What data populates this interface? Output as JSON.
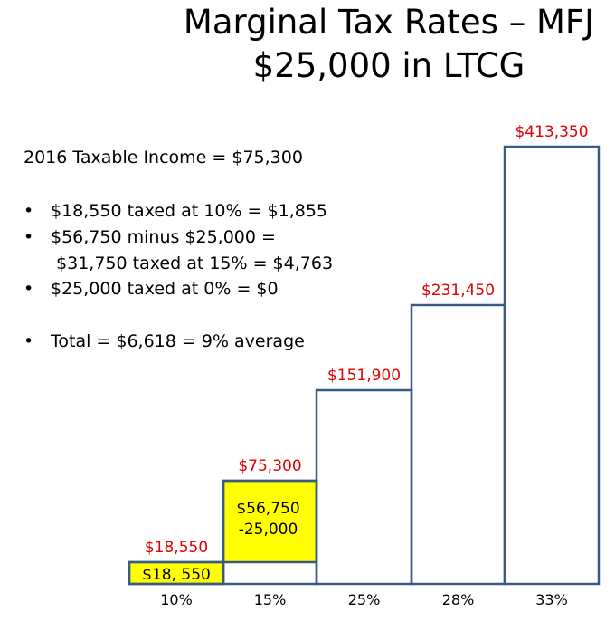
{
  "title": {
    "line1": "Marginal Tax Rates – MFJ",
    "line2": "$25,000 in LTCG"
  },
  "summary": {
    "heading": "2016 Taxable Income = $75,300",
    "bullets": [
      {
        "lines": [
          "$18,550 taxed at 10% =  $1,855"
        ]
      },
      {
        "lines": [
          "$56,750 minus $25,000 =",
          " $31,750 taxed at 15% = $4,763"
        ]
      },
      {
        "lines": [
          "$25,000 taxed at 0% = $0"
        ]
      },
      {
        "lines": [
          "Total = $6,618 = 9% average"
        ]
      }
    ]
  },
  "colors": {
    "outline": "#3a5a82",
    "fill": "#ffffff",
    "highlight": "#ffff00",
    "threshold_text": "#e00000",
    "text": "#000000"
  },
  "chart_data": {
    "type": "bar",
    "categories": [
      "10%",
      "15%",
      "25%",
      "28%",
      "33%"
    ],
    "values": [
      18550,
      75300,
      151900,
      231450,
      413350
    ],
    "value_labels": [
      "$18,550",
      "$75,300",
      "$151,900",
      "$231,450",
      "$413,350"
    ],
    "filled_segments": [
      {
        "category": "10%",
        "from": 0,
        "to": 18550,
        "label": "$18, 550"
      },
      {
        "category": "15%",
        "from": 18550,
        "to": 75300,
        "label_lines": [
          "$56,750",
          "-25,000"
        ]
      }
    ],
    "scale": "nonlinear",
    "xlabel": "",
    "ylabel": "",
    "legend": "none",
    "grid": false
  }
}
